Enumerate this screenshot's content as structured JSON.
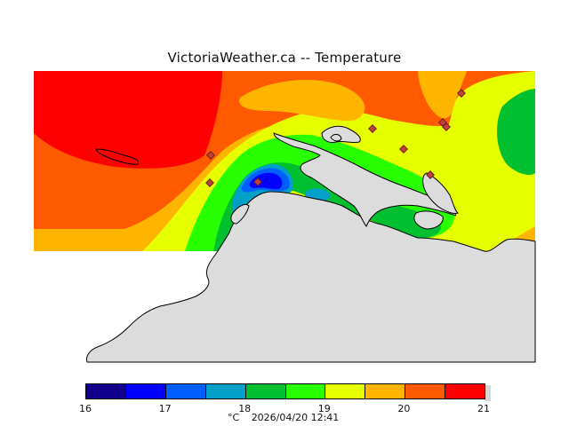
{
  "title": "VictoriaWeather.ca  --  Temperature",
  "legend": {
    "unit": "°C",
    "timestamp": "2026/04/20 12:41",
    "ticks": [
      "16",
      "17",
      "18",
      "19",
      "20",
      "21"
    ],
    "colors": [
      "#10008c",
      "#0000ff",
      "#0060ff",
      "#00a0c8",
      "#00c030",
      "#28ff00",
      "#e6ff00",
      "#ffb400",
      "#ff5a00",
      "#ff0000"
    ]
  },
  "map_colors": {
    "land": "#dcdcdc",
    "coast_line": "#000000",
    "station_marker": "#c04040"
  }
}
